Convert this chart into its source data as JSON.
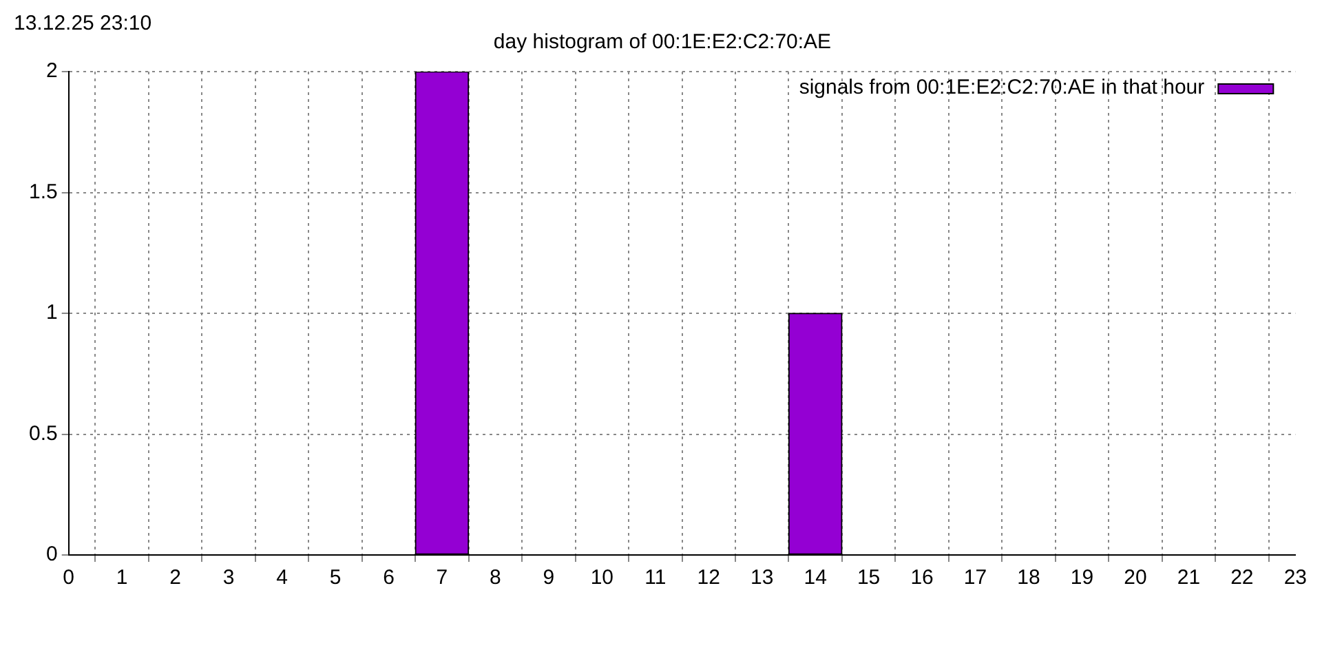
{
  "chart_data": {
    "type": "bar",
    "title": "day histogram of 00:1E:E2:C2:70:AE",
    "annotations": [
      "13.12.25 23:10"
    ],
    "x": [
      7,
      14
    ],
    "series": [
      {
        "name": "signals from 00:1E:E2:C2:70:AE in that hour",
        "color": "#9400d3",
        "values": [
          2,
          1
        ]
      }
    ],
    "xlim": [
      0,
      23
    ],
    "xticks": [
      0,
      1,
      2,
      3,
      4,
      5,
      6,
      7,
      8,
      9,
      10,
      11,
      12,
      13,
      14,
      15,
      16,
      17,
      18,
      19,
      20,
      21,
      22,
      23
    ],
    "ylim": [
      0,
      2
    ],
    "yticks": [
      0,
      0.5,
      1,
      1.5,
      2
    ],
    "grid": true,
    "legend": "top right"
  }
}
